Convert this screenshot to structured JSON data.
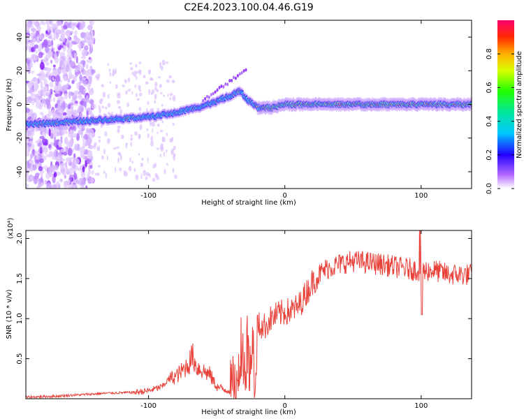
{
  "figure_title": "C2E4.2023.100.04.46.G19",
  "colors": {
    "snr_line": "#e8413a",
    "spectrum_low": "#d9b3ff",
    "spectrum_mid": "#00e6c3",
    "spectrum_high": "#ff1f1f"
  },
  "chart_data": [
    {
      "type": "heatmap",
      "title": "",
      "xlabel": "Height of straight line (km)",
      "ylabel": "Frequency (Hz)",
      "xlim": [
        -190,
        137
      ],
      "ylim": [
        -50,
        50
      ],
      "xticks": [
        -100,
        0,
        100
      ],
      "xtick_labels": [
        "-100",
        "0",
        "100"
      ],
      "yticks": [
        -40,
        -20,
        0,
        20,
        40
      ],
      "ytick_labels": [
        "-40",
        "-20",
        "0",
        "20",
        "40"
      ],
      "ridge": {
        "x": [
          -190,
          -170,
          -150,
          -130,
          -110,
          -95,
          -80,
          -70,
          -60,
          -50,
          -40,
          -33,
          -28,
          -20,
          -10,
          0,
          20,
          40,
          60,
          80,
          100,
          137
        ],
        "y": [
          -12,
          -11,
          -10,
          -9,
          -8,
          -7,
          -5,
          -3,
          -1,
          2,
          5,
          8,
          3,
          -2,
          -2,
          0,
          0,
          0,
          0,
          0,
          0,
          0
        ]
      },
      "colorbar": {
        "label": "Normalized spectral amplitude",
        "range": [
          0,
          1
        ],
        "ticks": [
          0.0,
          0.2,
          0.4,
          0.6,
          0.8
        ],
        "tick_labels": [
          "0.0",
          "0.2",
          "0.4",
          "0.6",
          "0.8"
        ]
      },
      "grid": false,
      "legend": "none"
    },
    {
      "type": "line",
      "title": "",
      "xlabel": "Height of straight line (km)",
      "ylabel": "SNR (10 * v/v)",
      "scale_label": "(x10⁴)",
      "xlim": [
        -190,
        137
      ],
      "ylim": [
        0,
        2.1
      ],
      "xticks": [
        -100,
        0,
        100
      ],
      "xtick_labels": [
        "-100",
        "0",
        "100"
      ],
      "yticks": [
        0.5,
        1.0,
        1.5,
        2.0
      ],
      "ytick_labels": [
        "0.5",
        "1.0",
        "1.5",
        "2.0"
      ],
      "series": [
        {
          "x": [
            -190,
            -170,
            -150,
            -130,
            -110,
            -100,
            -90,
            -85,
            -80,
            -75,
            -70,
            -68,
            -65,
            -60,
            -55,
            -50,
            -45,
            -40,
            -35,
            -32,
            -30,
            -28,
            -26,
            -24,
            -22,
            -20,
            -15,
            -10,
            -5,
            0,
            5,
            10,
            15,
            20,
            25,
            30,
            40,
            50,
            60,
            70,
            80,
            90,
            100,
            110,
            120,
            137
          ],
          "y": [
            0.02,
            0.03,
            0.05,
            0.07,
            0.08,
            0.1,
            0.15,
            0.25,
            0.28,
            0.35,
            0.45,
            0.55,
            0.4,
            0.35,
            0.3,
            0.15,
            0.12,
            0.1,
            0.2,
            0.8,
            0.5,
            0.85,
            0.25,
            0.9,
            0.3,
            0.92,
            0.9,
            1.0,
            1.05,
            1.08,
            1.1,
            1.15,
            1.3,
            1.45,
            1.55,
            1.62,
            1.68,
            1.72,
            1.7,
            1.68,
            1.65,
            1.62,
            1.6,
            1.6,
            1.55,
            1.55
          ]
        }
      ],
      "grid": false,
      "legend": "none"
    }
  ]
}
